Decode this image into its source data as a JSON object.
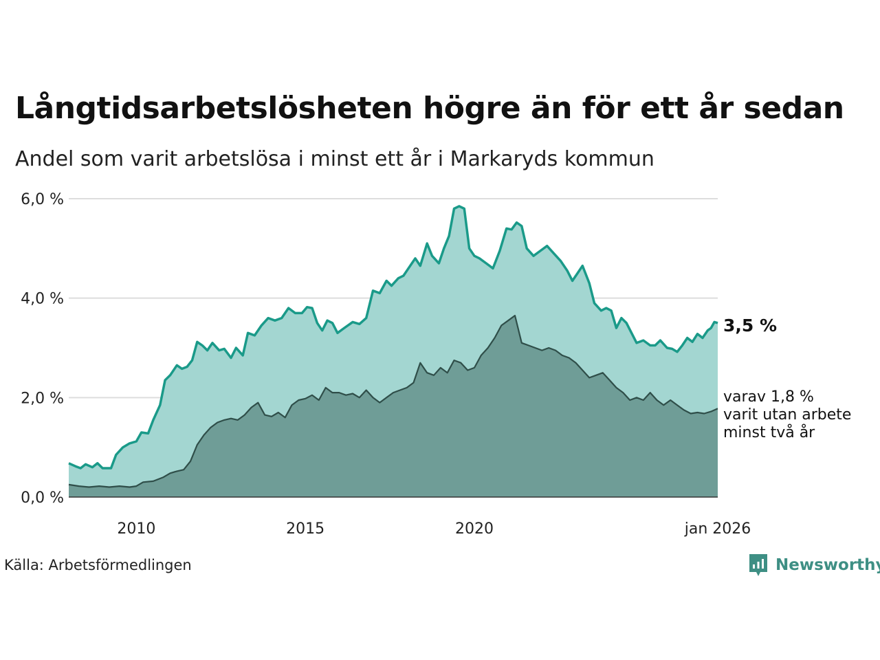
{
  "title": "Långtidsarbetslösheten högre än för ett år sedan",
  "subtitle": "Andel som varit arbetslösa i minst ett år i Markaryds kommun",
  "source": "Källa: Arbetsförmedlingen",
  "brand": "Newsworthy",
  "end_labels": {
    "main": "3,5 %",
    "sub_line1": "varav 1,8 %",
    "sub_line2": "varit utan arbete",
    "sub_line3": "minst två år"
  },
  "colors": {
    "area_light": "#a3d6d1",
    "line_light": "#1a9a89",
    "area_dark": "#6f9d97",
    "line_dark": "#2f4e49",
    "grid": "#dddddd",
    "brand": "#3e8f84"
  },
  "chart_data": {
    "type": "area",
    "title": "Långtidsarbetslösheten högre än för ett år sedan",
    "xlabel": "",
    "ylabel": "",
    "x_range": [
      2008.0,
      2026.0
    ],
    "ylim": [
      0,
      6
    ],
    "y_ticks": [
      0,
      2,
      4,
      6
    ],
    "y_tick_labels": [
      "0,0 %",
      "2,0 %",
      "4,0 %",
      "6,0 %"
    ],
    "x_ticks": [
      2010,
      2015,
      2020,
      2026
    ],
    "x_tick_labels": [
      "2010",
      "2015",
      "2020",
      "jan 2026"
    ],
    "series": [
      {
        "name": "Arbetslösa minst ett år",
        "points": [
          [
            2008.0,
            0.68
          ],
          [
            2008.2,
            0.62
          ],
          [
            2008.35,
            0.58
          ],
          [
            2008.5,
            0.66
          ],
          [
            2008.7,
            0.6
          ],
          [
            2008.85,
            0.68
          ],
          [
            2009.0,
            0.58
          ],
          [
            2009.25,
            0.58
          ],
          [
            2009.4,
            0.85
          ],
          [
            2009.6,
            1.0
          ],
          [
            2009.8,
            1.08
          ],
          [
            2010.0,
            1.12
          ],
          [
            2010.15,
            1.3
          ],
          [
            2010.35,
            1.28
          ],
          [
            2010.5,
            1.55
          ],
          [
            2010.7,
            1.85
          ],
          [
            2010.85,
            2.35
          ],
          [
            2011.0,
            2.45
          ],
          [
            2011.2,
            2.65
          ],
          [
            2011.35,
            2.58
          ],
          [
            2011.5,
            2.62
          ],
          [
            2011.65,
            2.75
          ],
          [
            2011.8,
            3.12
          ],
          [
            2011.95,
            3.05
          ],
          [
            2012.1,
            2.95
          ],
          [
            2012.25,
            3.1
          ],
          [
            2012.45,
            2.95
          ],
          [
            2012.6,
            2.98
          ],
          [
            2012.8,
            2.8
          ],
          [
            2012.95,
            3.0
          ],
          [
            2013.15,
            2.85
          ],
          [
            2013.3,
            3.3
          ],
          [
            2013.5,
            3.25
          ],
          [
            2013.7,
            3.45
          ],
          [
            2013.9,
            3.6
          ],
          [
            2014.1,
            3.55
          ],
          [
            2014.3,
            3.6
          ],
          [
            2014.5,
            3.8
          ],
          [
            2014.7,
            3.7
          ],
          [
            2014.9,
            3.7
          ],
          [
            2015.05,
            3.82
          ],
          [
            2015.2,
            3.8
          ],
          [
            2015.35,
            3.5
          ],
          [
            2015.5,
            3.35
          ],
          [
            2015.65,
            3.55
          ],
          [
            2015.8,
            3.5
          ],
          [
            2015.95,
            3.3
          ],
          [
            2016.15,
            3.4
          ],
          [
            2016.4,
            3.52
          ],
          [
            2016.6,
            3.48
          ],
          [
            2016.8,
            3.6
          ],
          [
            2017.0,
            4.15
          ],
          [
            2017.2,
            4.1
          ],
          [
            2017.4,
            4.35
          ],
          [
            2017.55,
            4.25
          ],
          [
            2017.75,
            4.4
          ],
          [
            2017.9,
            4.45
          ],
          [
            2018.05,
            4.6
          ],
          [
            2018.25,
            4.8
          ],
          [
            2018.4,
            4.65
          ],
          [
            2018.6,
            5.1
          ],
          [
            2018.75,
            4.85
          ],
          [
            2018.95,
            4.7
          ],
          [
            2019.1,
            5.0
          ],
          [
            2019.25,
            5.25
          ],
          [
            2019.4,
            5.8
          ],
          [
            2019.55,
            5.85
          ],
          [
            2019.7,
            5.8
          ],
          [
            2019.85,
            5.0
          ],
          [
            2020.0,
            4.85
          ],
          [
            2020.15,
            4.8
          ],
          [
            2020.35,
            4.7
          ],
          [
            2020.55,
            4.6
          ],
          [
            2020.75,
            4.95
          ],
          [
            2020.95,
            5.4
          ],
          [
            2021.1,
            5.38
          ],
          [
            2021.25,
            5.52
          ],
          [
            2021.4,
            5.45
          ],
          [
            2021.55,
            5.0
          ],
          [
            2021.75,
            4.85
          ],
          [
            2021.95,
            4.95
          ],
          [
            2022.15,
            5.05
          ],
          [
            2022.35,
            4.9
          ],
          [
            2022.55,
            4.75
          ],
          [
            2022.75,
            4.55
          ],
          [
            2022.9,
            4.35
          ],
          [
            2023.05,
            4.5
          ],
          [
            2023.2,
            4.65
          ],
          [
            2023.4,
            4.3
          ],
          [
            2023.55,
            3.9
          ],
          [
            2023.75,
            3.75
          ],
          [
            2023.9,
            3.8
          ],
          [
            2024.05,
            3.75
          ],
          [
            2024.2,
            3.4
          ],
          [
            2024.35,
            3.6
          ],
          [
            2024.5,
            3.5
          ],
          [
            2024.65,
            3.3
          ],
          [
            2024.8,
            3.1
          ],
          [
            2025.0,
            3.15
          ],
          [
            2025.2,
            3.05
          ],
          [
            2025.35,
            3.05
          ],
          [
            2025.5,
            3.15
          ],
          [
            2025.7,
            3.0
          ],
          [
            2025.85,
            2.98
          ],
          [
            2026.0,
            2.92
          ],
          [
            2026.15,
            3.05
          ],
          [
            2026.3,
            3.2
          ],
          [
            2026.45,
            3.12
          ],
          [
            2026.6,
            3.28
          ],
          [
            2026.75,
            3.2
          ],
          [
            2026.9,
            3.35
          ],
          [
            2027.0,
            3.4
          ],
          [
            2027.1,
            3.52
          ],
          [
            2027.2,
            3.5
          ]
        ]
      },
      {
        "name": "varav minst två år",
        "points": [
          [
            2008.0,
            0.25
          ],
          [
            2008.3,
            0.22
          ],
          [
            2008.6,
            0.2
          ],
          [
            2008.9,
            0.22
          ],
          [
            2009.2,
            0.2
          ],
          [
            2009.5,
            0.22
          ],
          [
            2009.8,
            0.2
          ],
          [
            2010.0,
            0.22
          ],
          [
            2010.2,
            0.3
          ],
          [
            2010.5,
            0.32
          ],
          [
            2010.8,
            0.4
          ],
          [
            2011.0,
            0.48
          ],
          [
            2011.2,
            0.52
          ],
          [
            2011.4,
            0.55
          ],
          [
            2011.6,
            0.72
          ],
          [
            2011.8,
            1.05
          ],
          [
            2012.0,
            1.25
          ],
          [
            2012.2,
            1.4
          ],
          [
            2012.4,
            1.5
          ],
          [
            2012.6,
            1.55
          ],
          [
            2012.8,
            1.58
          ],
          [
            2013.0,
            1.55
          ],
          [
            2013.2,
            1.65
          ],
          [
            2013.4,
            1.8
          ],
          [
            2013.6,
            1.9
          ],
          [
            2013.8,
            1.65
          ],
          [
            2014.0,
            1.62
          ],
          [
            2014.2,
            1.7
          ],
          [
            2014.4,
            1.6
          ],
          [
            2014.6,
            1.85
          ],
          [
            2014.8,
            1.95
          ],
          [
            2015.0,
            1.98
          ],
          [
            2015.2,
            2.05
          ],
          [
            2015.4,
            1.95
          ],
          [
            2015.6,
            2.2
          ],
          [
            2015.8,
            2.1
          ],
          [
            2016.0,
            2.1
          ],
          [
            2016.2,
            2.05
          ],
          [
            2016.4,
            2.08
          ],
          [
            2016.6,
            2.0
          ],
          [
            2016.8,
            2.15
          ],
          [
            2017.0,
            2.0
          ],
          [
            2017.2,
            1.9
          ],
          [
            2017.4,
            2.0
          ],
          [
            2017.6,
            2.1
          ],
          [
            2017.8,
            2.15
          ],
          [
            2018.0,
            2.2
          ],
          [
            2018.2,
            2.3
          ],
          [
            2018.4,
            2.7
          ],
          [
            2018.6,
            2.5
          ],
          [
            2018.8,
            2.45
          ],
          [
            2019.0,
            2.6
          ],
          [
            2019.2,
            2.5
          ],
          [
            2019.4,
            2.75
          ],
          [
            2019.6,
            2.7
          ],
          [
            2019.8,
            2.55
          ],
          [
            2020.0,
            2.6
          ],
          [
            2020.2,
            2.85
          ],
          [
            2020.4,
            3.0
          ],
          [
            2020.6,
            3.2
          ],
          [
            2020.8,
            3.45
          ],
          [
            2021.0,
            3.55
          ],
          [
            2021.2,
            3.65
          ],
          [
            2021.4,
            3.1
          ],
          [
            2021.6,
            3.05
          ],
          [
            2021.8,
            3.0
          ],
          [
            2022.0,
            2.95
          ],
          [
            2022.2,
            3.0
          ],
          [
            2022.4,
            2.95
          ],
          [
            2022.6,
            2.85
          ],
          [
            2022.8,
            2.8
          ],
          [
            2023.0,
            2.7
          ],
          [
            2023.2,
            2.55
          ],
          [
            2023.4,
            2.4
          ],
          [
            2023.6,
            2.45
          ],
          [
            2023.8,
            2.5
          ],
          [
            2024.0,
            2.35
          ],
          [
            2024.2,
            2.2
          ],
          [
            2024.4,
            2.1
          ],
          [
            2024.6,
            1.95
          ],
          [
            2024.8,
            2.0
          ],
          [
            2025.0,
            1.95
          ],
          [
            2025.2,
            2.1
          ],
          [
            2025.4,
            1.95
          ],
          [
            2025.6,
            1.85
          ],
          [
            2025.8,
            1.95
          ],
          [
            2026.0,
            1.85
          ],
          [
            2026.2,
            1.75
          ],
          [
            2026.4,
            1.68
          ],
          [
            2026.6,
            1.7
          ],
          [
            2026.8,
            1.68
          ],
          [
            2027.0,
            1.72
          ],
          [
            2027.2,
            1.78
          ]
        ]
      }
    ],
    "last_values": {
      "main": 3.5,
      "sub": 1.8
    }
  }
}
